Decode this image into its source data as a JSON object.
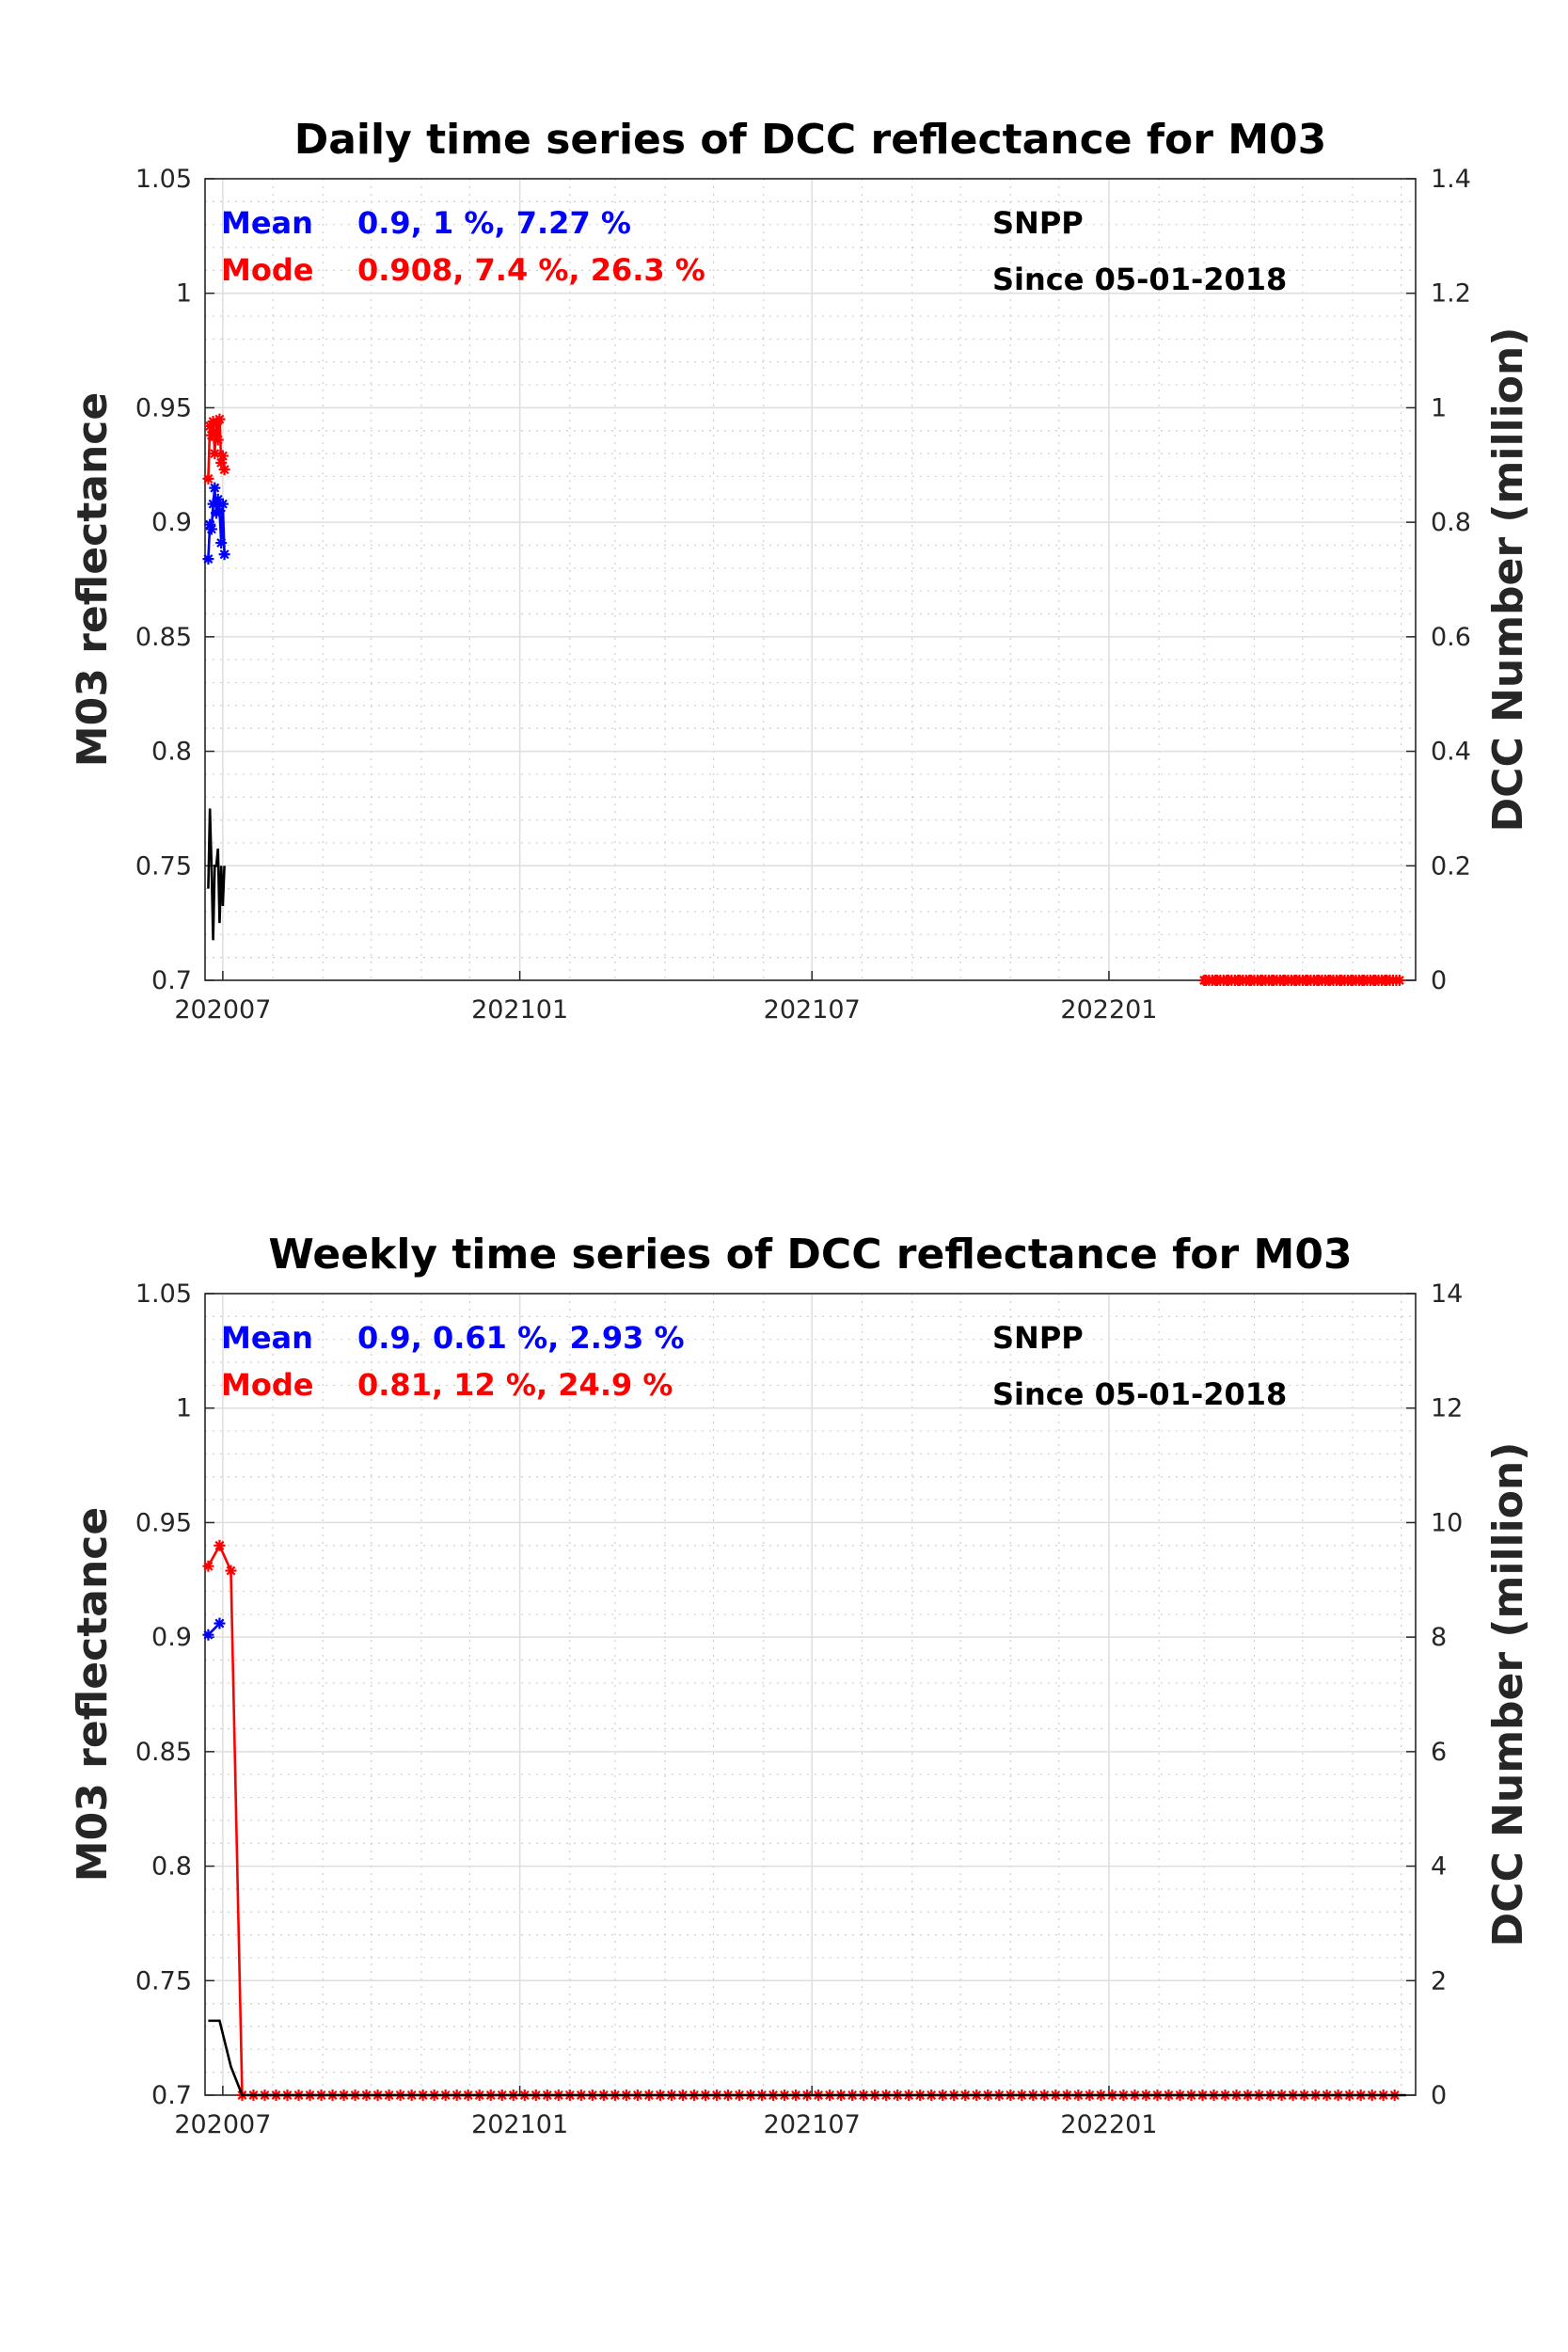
{
  "chart_data": [
    {
      "type": "line",
      "title": "Daily time series of DCC reflectance for M03",
      "ylabel_left": "M03 reflectance",
      "ylabel_right": "DCC Number (million)",
      "ylim_left": [
        0.7,
        1.05
      ],
      "ylim_right": [
        0,
        1.4
      ],
      "yticks_left": [
        "0.7",
        "0.75",
        "0.8",
        "0.85",
        "0.9",
        "0.95",
        "1",
        "1.05"
      ],
      "yticks_right": [
        "0",
        "0.2",
        "0.4",
        "0.6",
        "0.8",
        "1",
        "1.2",
        "1.4"
      ],
      "xticks": [
        "202007",
        "202101",
        "202107",
        "202201"
      ],
      "xlim": [
        "2020-06-20",
        "2022-07-10"
      ],
      "grid": true,
      "annotations": {
        "mean_label": "Mean",
        "mean_value": "0.9, 1 %, 7.27 %",
        "mode_label": "Mode",
        "mode_value": "0.908, 7.4 %, 26.3 %",
        "satellite": "SNPP",
        "since": "Since 05-01-2018"
      },
      "series": [
        {
          "name": "Mean",
          "color": "#0000ff",
          "axis": "left",
          "marker": "*",
          "x": [
            "2020-06-22",
            "2020-06-23",
            "2020-06-24",
            "2020-06-25",
            "2020-06-26",
            "2020-06-27",
            "2020-06-28",
            "2020-06-29",
            "2020-06-30",
            "2020-07-01",
            "2020-07-02"
          ],
          "y": [
            0.884,
            0.899,
            0.897,
            0.908,
            0.915,
            0.904,
            0.91,
            0.905,
            0.891,
            0.908,
            0.886
          ]
        },
        {
          "name": "Mode",
          "color": "#ff0000",
          "axis": "left",
          "marker": "*",
          "x": [
            "2020-06-22",
            "2020-06-23",
            "2020-06-24",
            "2020-06-25",
            "2020-06-26",
            "2020-06-27",
            "2020-06-28",
            "2020-06-29",
            "2020-06-30",
            "2020-07-01",
            "2020-07-02"
          ],
          "y": [
            0.919,
            0.942,
            0.938,
            0.944,
            0.93,
            0.943,
            0.936,
            0.945,
            0.926,
            0.929,
            0.923
          ]
        },
        {
          "color": "#ff0000",
          "axis": "left",
          "marker": "*",
          "flat_segment": true,
          "x_start": "2022-03-01",
          "x_end": "2022-06-30",
          "value": 0.7,
          "count": 70
        },
        {
          "name": "DCC Number",
          "color": "#000000",
          "axis": "right",
          "marker": "none",
          "x": [
            "2020-06-22",
            "2020-06-23",
            "2020-06-24",
            "2020-06-25",
            "2020-06-26",
            "2020-06-27",
            "2020-06-28",
            "2020-06-29",
            "2020-06-30",
            "2020-07-01",
            "2020-07-02"
          ],
          "y": [
            0.16,
            0.3,
            0.2,
            0.07,
            0.2,
            0.2,
            0.23,
            0.1,
            0.2,
            0.13,
            0.2
          ]
        }
      ]
    },
    {
      "type": "line",
      "title": "Weekly time series of DCC reflectance for M03",
      "ylabel_left": "M03 reflectance",
      "ylabel_right": "DCC Number (million)",
      "ylim_left": [
        0.7,
        1.05
      ],
      "ylim_right": [
        0,
        14
      ],
      "yticks_left": [
        "0.7",
        "0.75",
        "0.8",
        "0.85",
        "0.9",
        "0.95",
        "1",
        "1.05"
      ],
      "yticks_right": [
        "0",
        "2",
        "4",
        "6",
        "8",
        "10",
        "12",
        "14"
      ],
      "xticks": [
        "202007",
        "202101",
        "202107",
        "202201"
      ],
      "xlim": [
        "2020-06-20",
        "2022-07-10"
      ],
      "grid": true,
      "annotations": {
        "mean_label": "Mean",
        "mean_value": "0.9, 0.61 %, 2.93 %",
        "mode_label": "Mode",
        "mode_value": "0.81, 12 %, 24.9 %",
        "satellite": "SNPP",
        "since": "Since 05-01-2018"
      },
      "series": [
        {
          "name": "Mean",
          "color": "#0000ff",
          "axis": "left",
          "marker": "*",
          "x": [
            "2020-06-22",
            "2020-06-29"
          ],
          "y": [
            0.901,
            0.906
          ]
        },
        {
          "name": "Mode",
          "color": "#ff0000",
          "axis": "left",
          "marker": "*",
          "x_start": "2020-06-22",
          "step_days": 7,
          "y_head": [
            0.931,
            0.94,
            0.929
          ],
          "y_rest_value": 0.7,
          "y_rest_count": 103
        },
        {
          "name": "DCC Number",
          "color": "#000000",
          "axis": "right",
          "marker": "none",
          "x": [
            "2020-06-22",
            "2020-06-29",
            "2020-07-06",
            "2020-07-13",
            "2020-07-20",
            "2022-07-04"
          ],
          "y": [
            1.3,
            1.3,
            0.5,
            0,
            0,
            0
          ]
        }
      ]
    }
  ]
}
